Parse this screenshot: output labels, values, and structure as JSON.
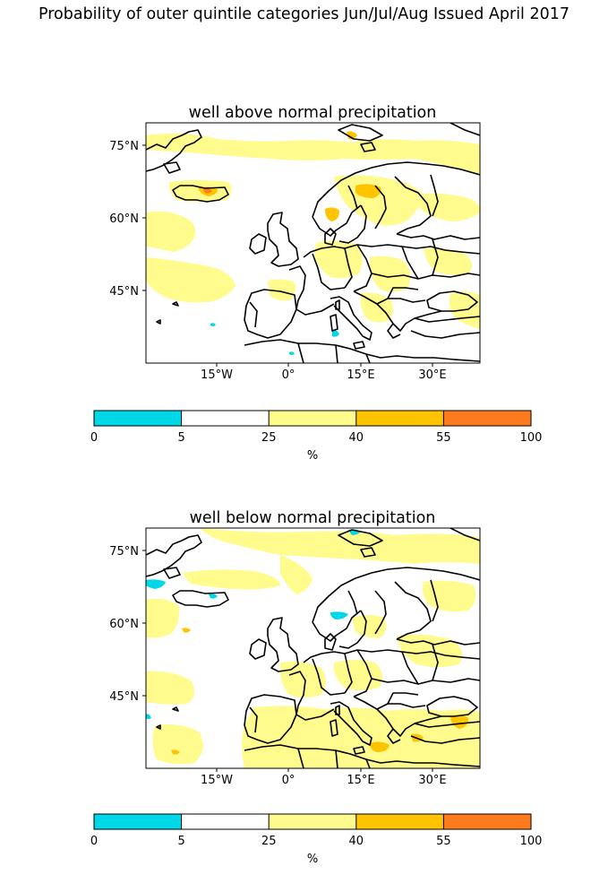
{
  "suptitle": "Probability of outer quintile categories Jun/Jul/Aug Issued April 2017",
  "colors": {
    "cyan": "#00d8e8",
    "white": "#ffffff",
    "light_yellow": "#fffb8c",
    "gold": "#ffc400",
    "orange": "#ff7a1c",
    "coast": "#000000"
  },
  "panels": [
    {
      "title": "well above normal precipitation",
      "lat_ticks": [
        "75°N",
        "60°N",
        "45°N"
      ],
      "lon_ticks": [
        "15°W",
        "0°",
        "15°E",
        "30°E"
      ],
      "colorbar": {
        "boundaries": [
          "0",
          "5",
          "25",
          "40",
          "55",
          "100"
        ],
        "unit": "%"
      }
    },
    {
      "title": "well below normal precipitation",
      "lat_ticks": [
        "75°N",
        "60°N",
        "45°N"
      ],
      "lon_ticks": [
        "15°W",
        "0°",
        "15°E",
        "30°E"
      ],
      "colorbar": {
        "boundaries": [
          "0",
          "5",
          "25",
          "40",
          "55",
          "100"
        ],
        "unit": "%"
      }
    }
  ]
}
